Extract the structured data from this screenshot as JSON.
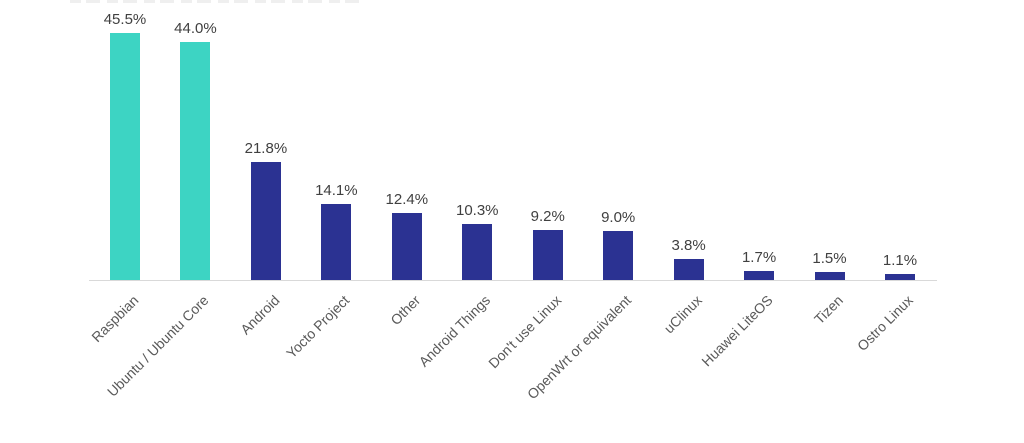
{
  "chart_data": {
    "type": "bar",
    "title": "",
    "xlabel": "",
    "ylabel": "",
    "ylim": [
      0,
      50
    ],
    "grid": false,
    "legend": "none",
    "orientation": "vertical",
    "categories": [
      "Raspbian",
      "Ubuntu / Ubuntu Core",
      "Android",
      "Yocto Project",
      "Other",
      "Android Things",
      "Don't use Linux",
      "OpenWrt or equivalent",
      "uClinux",
      "Huawei LiteOS",
      "Tizen",
      "Ostro Linux"
    ],
    "values": [
      45.5,
      44.0,
      21.8,
      14.1,
      12.4,
      10.3,
      9.2,
      9.0,
      3.8,
      1.7,
      1.5,
      1.1
    ],
    "data_labels": [
      "45.5%",
      "44.0%",
      "21.8%",
      "14.1%",
      "12.4%",
      "10.3%",
      "9.2%",
      "9.0%",
      "3.8%",
      "1.7%",
      "1.5%",
      "1.1%"
    ],
    "bar_colors": [
      "#3dd4c3",
      "#3dd4c3",
      "#2b3292",
      "#2b3292",
      "#2b3292",
      "#2b3292",
      "#2b3292",
      "#2b3292",
      "#2b3292",
      "#2b3292",
      "#2b3292",
      "#2b3292"
    ],
    "colors": {
      "highlight": "#3dd4c3",
      "default": "#2b3292",
      "axis_line": "#d9d9d9",
      "value_label_text": "#404040",
      "category_label_text": "#595959",
      "background": "#ffffff"
    },
    "category_label_rotation_deg": -45
  }
}
